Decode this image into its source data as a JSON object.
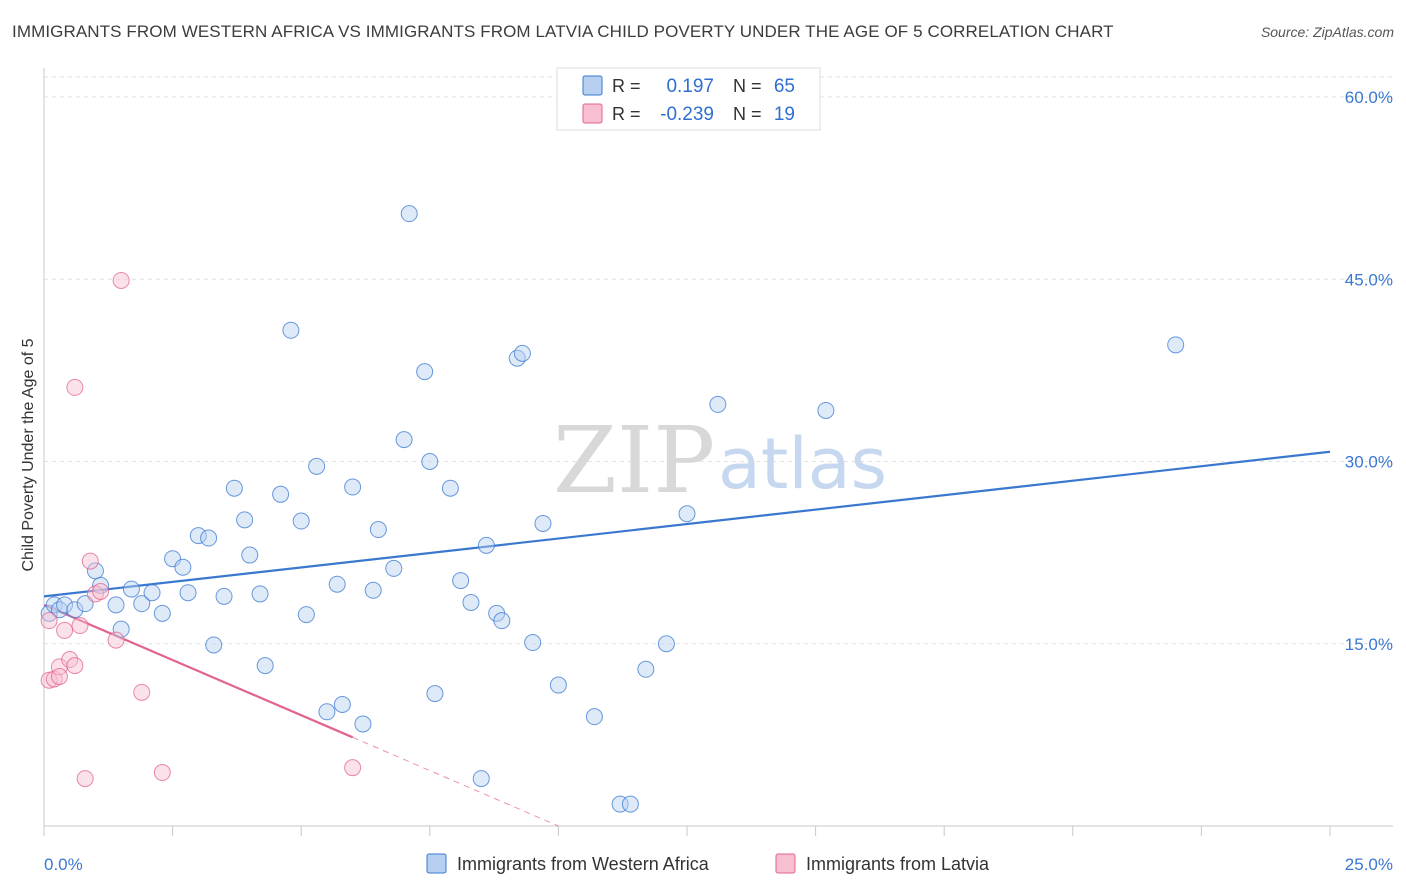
{
  "title": "IMMIGRANTS FROM WESTERN AFRICA VS IMMIGRANTS FROM LATVIA CHILD POVERTY UNDER THE AGE OF 5 CORRELATION CHART",
  "source": "Source: ZipAtlas.com",
  "watermark": {
    "zip": "ZIP",
    "atlas": "atlas"
  },
  "colors": {
    "blue": "#3a78d0",
    "blue_fill": "#b7d0f2",
    "pink": "#e2638c",
    "pink_fill": "#f7bfd0"
  },
  "legend": {
    "rows": [
      {
        "r_label": "R =",
        "r_value": "0.197",
        "n_label": "N =",
        "n_value": "65"
      },
      {
        "r_label": "R =",
        "r_value": "-0.239",
        "n_label": "N =",
        "n_value": "19"
      }
    ]
  },
  "chart_data": {
    "type": "scatter",
    "title": "IMMIGRANTS FROM WESTERN AFRICA VS IMMIGRANTS FROM LATVIA CHILD POVERTY UNDER THE AGE OF 5 CORRELATION CHART",
    "xlabel": "",
    "ylabel": "Child Poverty Under the Age of 5",
    "xlim": [
      0,
      25
    ],
    "ylim": [
      0,
      60
    ],
    "x_tick_labels": [
      "0.0%",
      "25.0%"
    ],
    "y_ticks": [
      15,
      30,
      45,
      60
    ],
    "y_tick_labels": [
      "15.0%",
      "30.0%",
      "45.0%",
      "60.0%"
    ],
    "grid": true,
    "legend_position": "top-center",
    "series": [
      {
        "name": "Immigrants from Western Africa",
        "color": "#3a78d0",
        "points": [
          [
            0.1,
            17.5
          ],
          [
            0.2,
            18.2
          ],
          [
            0.3,
            17.8
          ],
          [
            0.4,
            18.2
          ],
          [
            0.6,
            17.8
          ],
          [
            0.8,
            18.3
          ],
          [
            1.0,
            21.0
          ],
          [
            1.1,
            19.8
          ],
          [
            1.4,
            18.2
          ],
          [
            1.5,
            16.2
          ],
          [
            1.7,
            19.5
          ],
          [
            1.9,
            18.3
          ],
          [
            2.1,
            19.2
          ],
          [
            2.3,
            17.5
          ],
          [
            2.5,
            22.0
          ],
          [
            2.7,
            21.3
          ],
          [
            2.8,
            19.2
          ],
          [
            3.0,
            23.9
          ],
          [
            3.2,
            23.7
          ],
          [
            3.3,
            14.9
          ],
          [
            3.5,
            18.9
          ],
          [
            3.7,
            27.8
          ],
          [
            3.9,
            25.2
          ],
          [
            4.0,
            22.3
          ],
          [
            4.2,
            19.1
          ],
          [
            4.3,
            13.2
          ],
          [
            4.6,
            27.3
          ],
          [
            4.8,
            40.8
          ],
          [
            5.0,
            25.1
          ],
          [
            5.1,
            17.4
          ],
          [
            5.3,
            29.6
          ],
          [
            5.5,
            9.4
          ],
          [
            5.7,
            19.9
          ],
          [
            5.8,
            10.0
          ],
          [
            6.0,
            27.9
          ],
          [
            6.2,
            8.4
          ],
          [
            6.4,
            19.4
          ],
          [
            6.5,
            24.4
          ],
          [
            6.8,
            21.2
          ],
          [
            7.0,
            31.8
          ],
          [
            7.1,
            50.4
          ],
          [
            7.4,
            37.4
          ],
          [
            7.5,
            30.0
          ],
          [
            7.6,
            10.9
          ],
          [
            7.9,
            27.8
          ],
          [
            8.1,
            20.2
          ],
          [
            8.3,
            18.4
          ],
          [
            8.5,
            3.9
          ],
          [
            8.6,
            23.1
          ],
          [
            8.8,
            17.5
          ],
          [
            8.9,
            16.9
          ],
          [
            9.2,
            38.5
          ],
          [
            9.3,
            38.9
          ],
          [
            9.5,
            15.1
          ],
          [
            9.7,
            24.9
          ],
          [
            10.0,
            11.6
          ],
          [
            10.7,
            9.0
          ],
          [
            11.2,
            1.8
          ],
          [
            11.4,
            1.8
          ],
          [
            11.7,
            12.9
          ],
          [
            12.1,
            15.0
          ],
          [
            12.5,
            25.7
          ],
          [
            13.1,
            34.7
          ],
          [
            15.2,
            34.2
          ],
          [
            22.0,
            39.6
          ]
        ]
      },
      {
        "name": "Immigrants from Latvia",
        "color": "#e2638c",
        "points": [
          [
            0.1,
            16.9
          ],
          [
            0.1,
            12.0
          ],
          [
            0.2,
            12.1
          ],
          [
            0.3,
            13.1
          ],
          [
            0.3,
            12.3
          ],
          [
            0.4,
            16.1
          ],
          [
            0.5,
            13.7
          ],
          [
            0.6,
            13.2
          ],
          [
            0.6,
            36.1
          ],
          [
            0.7,
            16.5
          ],
          [
            0.8,
            3.9
          ],
          [
            0.9,
            21.8
          ],
          [
            1.0,
            19.1
          ],
          [
            1.1,
            19.3
          ],
          [
            1.4,
            15.3
          ],
          [
            1.5,
            44.9
          ],
          [
            1.9,
            11.0
          ],
          [
            2.3,
            4.4
          ],
          [
            6.0,
            4.8
          ]
        ]
      }
    ],
    "trend_lines": [
      {
        "series": "Immigrants from Western Africa",
        "x": [
          0,
          25
        ],
        "y": [
          18.9,
          30.8
        ],
        "style": "solid"
      },
      {
        "series": "Immigrants from Latvia",
        "x": [
          0,
          6.0
        ],
        "y": [
          18.2,
          7.3
        ],
        "style": "solid"
      },
      {
        "series": "Immigrants from Latvia",
        "x": [
          6.0,
          10.0
        ],
        "y": [
          7.3,
          0.0
        ],
        "style": "dashed"
      }
    ]
  }
}
